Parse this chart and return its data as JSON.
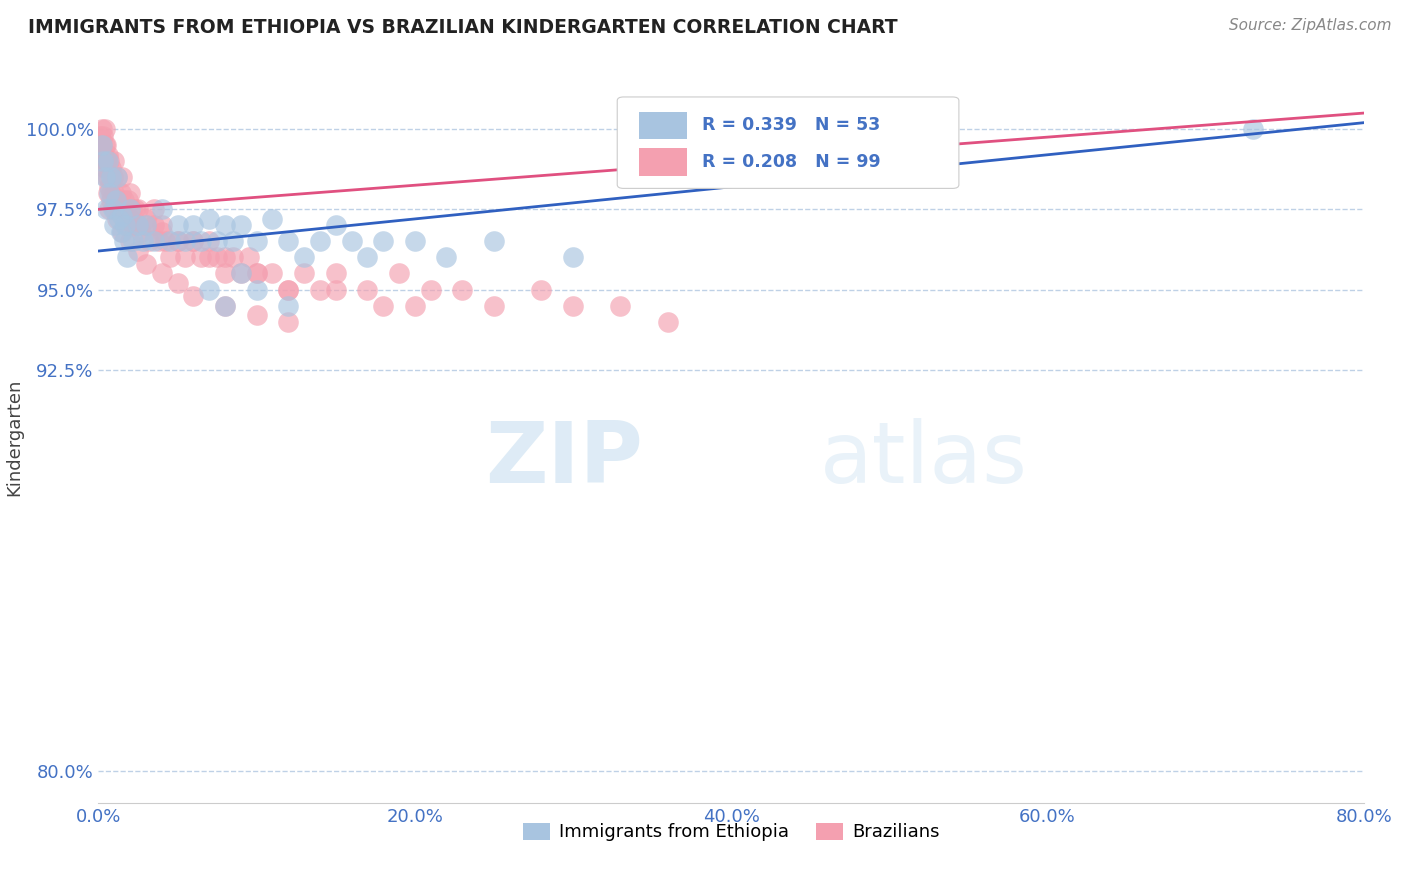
{
  "title": "IMMIGRANTS FROM ETHIOPIA VS BRAZILIAN KINDERGARTEN CORRELATION CHART",
  "source": "Source: ZipAtlas.com",
  "ylabel": "Kindergarten",
  "xlim": [
    0.0,
    80.0
  ],
  "ylim": [
    79.0,
    101.8
  ],
  "yticks": [
    80.0,
    92.5,
    95.0,
    97.5,
    100.0
  ],
  "ytick_labels": [
    "80.0%",
    "92.5%",
    "95.0%",
    "97.5%",
    "100.0%"
  ],
  "xticks": [
    0.0,
    20.0,
    40.0,
    60.0,
    80.0
  ],
  "xtick_labels": [
    "0.0%",
    "20.0%",
    "40.0%",
    "60.0%",
    "80.0%"
  ],
  "legend_blue_label": "Immigrants from Ethiopia",
  "legend_pink_label": "Brazilians",
  "blue_R": 0.339,
  "blue_N": 53,
  "pink_R": 0.208,
  "pink_N": 99,
  "blue_color": "#a8c4e0",
  "pink_color": "#f4a0b0",
  "blue_line_color": "#3060c0",
  "pink_line_color": "#e05080",
  "watermark_zip": "ZIP",
  "watermark_atlas": "atlas",
  "blue_scatter_x": [
    0.2,
    0.3,
    0.4,
    0.5,
    0.6,
    0.7,
    0.8,
    0.9,
    1.0,
    1.1,
    1.2,
    1.3,
    1.4,
    1.5,
    1.6,
    1.7,
    1.8,
    2.0,
    2.2,
    2.5,
    2.8,
    3.0,
    3.5,
    4.0,
    4.5,
    5.0,
    5.5,
    6.0,
    6.5,
    7.0,
    7.5,
    8.0,
    8.5,
    9.0,
    10.0,
    11.0,
    12.0,
    13.0,
    14.0,
    15.0,
    16.0,
    17.0,
    18.0,
    20.0,
    22.0,
    25.0,
    30.0,
    7.0,
    8.0,
    9.0,
    10.0,
    12.0,
    73.0
  ],
  "blue_scatter_y": [
    99.5,
    99.0,
    98.5,
    97.5,
    99.0,
    98.0,
    98.5,
    97.5,
    97.0,
    97.8,
    98.5,
    97.2,
    96.8,
    97.3,
    96.5,
    97.0,
    96.0,
    97.5,
    96.5,
    97.0,
    96.5,
    97.0,
    96.5,
    97.5,
    96.5,
    97.0,
    96.5,
    97.0,
    96.5,
    97.2,
    96.5,
    97.0,
    96.5,
    97.0,
    96.5,
    97.2,
    96.5,
    96.0,
    96.5,
    97.0,
    96.5,
    96.0,
    96.5,
    96.5,
    96.0,
    96.5,
    96.0,
    95.0,
    94.5,
    95.5,
    95.0,
    94.5,
    100.0
  ],
  "pink_scatter_x": [
    0.1,
    0.2,
    0.2,
    0.3,
    0.3,
    0.4,
    0.4,
    0.5,
    0.5,
    0.5,
    0.6,
    0.6,
    0.7,
    0.7,
    0.8,
    0.8,
    0.9,
    1.0,
    1.0,
    1.1,
    1.2,
    1.3,
    1.4,
    1.5,
    1.6,
    1.7,
    1.8,
    1.9,
    2.0,
    2.1,
    2.2,
    2.3,
    2.5,
    2.7,
    3.0,
    3.2,
    3.5,
    3.8,
    4.0,
    4.2,
    4.5,
    5.0,
    5.5,
    6.0,
    6.5,
    7.0,
    7.5,
    8.0,
    8.5,
    9.0,
    9.5,
    10.0,
    11.0,
    12.0,
    13.0,
    14.0,
    15.0,
    17.0,
    19.0,
    21.0,
    23.0,
    25.0,
    28.0,
    30.0,
    33.0,
    36.0,
    1.5,
    2.0,
    2.5,
    3.0,
    3.5,
    4.0,
    5.0,
    6.0,
    7.0,
    8.0,
    10.0,
    12.0,
    15.0,
    18.0,
    20.0,
    0.3,
    0.4,
    0.5,
    0.6,
    0.7,
    0.8,
    1.0,
    1.2,
    1.5,
    2.0,
    2.5,
    3.0,
    4.0,
    5.0,
    6.0,
    8.0,
    10.0,
    12.0
  ],
  "pink_scatter_y": [
    99.8,
    99.5,
    100.0,
    99.0,
    99.8,
    99.5,
    100.0,
    99.0,
    99.5,
    98.5,
    99.2,
    98.0,
    99.0,
    97.5,
    98.8,
    98.0,
    98.5,
    98.0,
    99.0,
    97.8,
    98.5,
    97.5,
    98.0,
    97.5,
    97.8,
    97.5,
    97.0,
    97.8,
    97.2,
    97.5,
    97.0,
    97.5,
    97.0,
    96.8,
    97.2,
    96.5,
    97.0,
    96.5,
    96.8,
    96.5,
    96.0,
    96.5,
    96.0,
    96.5,
    96.0,
    96.5,
    96.0,
    95.5,
    96.0,
    95.5,
    96.0,
    95.5,
    95.5,
    95.0,
    95.5,
    95.0,
    95.5,
    95.0,
    95.5,
    95.0,
    95.0,
    94.5,
    95.0,
    94.5,
    94.5,
    94.0,
    98.5,
    98.0,
    97.5,
    97.0,
    97.5,
    97.0,
    96.5,
    96.5,
    96.0,
    96.0,
    95.5,
    95.0,
    95.0,
    94.5,
    94.5,
    99.2,
    98.8,
    99.0,
    98.5,
    98.2,
    97.8,
    97.5,
    97.2,
    96.8,
    96.5,
    96.2,
    95.8,
    95.5,
    95.2,
    94.8,
    94.5,
    94.2,
    94.0
  ],
  "blue_trendline_x": [
    0.0,
    80.0
  ],
  "blue_trendline_y": [
    96.2,
    100.2
  ],
  "pink_trendline_x": [
    0.0,
    80.0
  ],
  "pink_trendline_y": [
    97.5,
    100.5
  ]
}
